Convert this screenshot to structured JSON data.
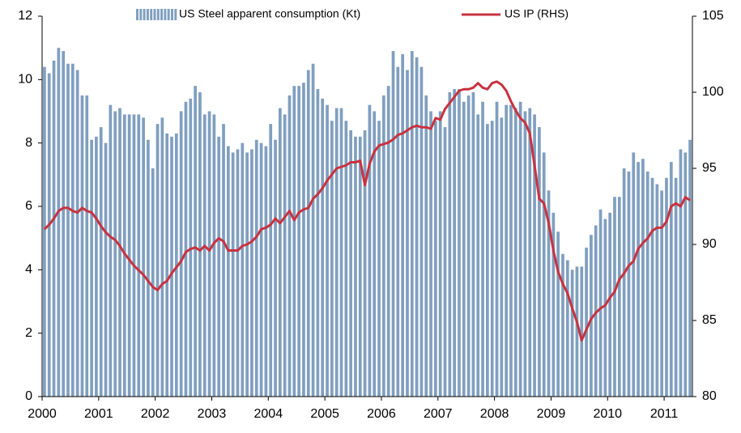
{
  "chart_data": {
    "type": "bar",
    "categories": [
      "2000",
      null,
      null,
      null,
      null,
      null,
      null,
      null,
      null,
      null,
      null,
      null,
      "2001",
      null,
      null,
      null,
      null,
      null,
      null,
      null,
      null,
      null,
      null,
      null,
      "2002",
      null,
      null,
      null,
      null,
      null,
      null,
      null,
      null,
      null,
      null,
      null,
      "2003",
      null,
      null,
      null,
      null,
      null,
      null,
      null,
      null,
      null,
      null,
      null,
      "2004",
      null,
      null,
      null,
      null,
      null,
      null,
      null,
      null,
      null,
      null,
      null,
      "2005",
      null,
      null,
      null,
      null,
      null,
      null,
      null,
      null,
      null,
      null,
      null,
      "2006",
      null,
      null,
      null,
      null,
      null,
      null,
      null,
      null,
      null,
      null,
      null,
      "2007",
      null,
      null,
      null,
      null,
      null,
      null,
      null,
      null,
      null,
      null,
      null,
      "2008",
      null,
      null,
      null,
      null,
      null,
      null,
      null,
      null,
      null,
      null,
      null,
      "2009",
      null,
      null,
      null,
      null,
      null,
      null,
      null,
      null,
      null,
      null,
      null,
      "2010",
      null,
      null,
      null,
      null,
      null,
      null,
      null,
      null,
      null,
      null,
      null,
      "2011",
      null,
      null,
      null,
      null,
      null
    ],
    "series": [
      {
        "name": "US Steel apparent consumption (Kt)",
        "color": "#809fc0",
        "type": "bar",
        "values": [
          10.4,
          10.2,
          10.6,
          11.0,
          10.9,
          10.5,
          10.5,
          10.3,
          9.5,
          9.5,
          8.1,
          8.2,
          8.5,
          8.0,
          9.2,
          9.0,
          9.1,
          8.9,
          8.9,
          8.9,
          8.9,
          8.8,
          8.1,
          7.2,
          8.6,
          8.8,
          8.3,
          8.2,
          8.3,
          9.0,
          9.3,
          9.4,
          9.8,
          9.6,
          8.9,
          9.0,
          8.9,
          8.2,
          8.6,
          7.9,
          7.7,
          7.8,
          8.0,
          7.7,
          7.8,
          8.1,
          8.0,
          7.9,
          8.6,
          8.1,
          9.1,
          8.9,
          9.5,
          9.8,
          9.8,
          9.9,
          10.3,
          10.5,
          9.7,
          9.4,
          9.2,
          8.7,
          9.1,
          9.1,
          8.7,
          8.4,
          8.2,
          8.2,
          8.4,
          9.2,
          9.0,
          8.7,
          9.5,
          9.8,
          10.9,
          10.4,
          10.8,
          10.3,
          10.9,
          10.7,
          10.4,
          9.5,
          9.0,
          8.7,
          9.0,
          8.5,
          9.6,
          9.7,
          9.7,
          9.3,
          9.5,
          9.6,
          8.9,
          9.3,
          8.6,
          8.7,
          9.3,
          8.8,
          9.2,
          9.2,
          9.1,
          9.3,
          9.0,
          9.1,
          8.9,
          8.5,
          7.7,
          6.5,
          5.8,
          5.2,
          4.5,
          4.3,
          4.0,
          4.1,
          4.1,
          4.7,
          5.1,
          5.4,
          5.9,
          5.6,
          5.8,
          6.3,
          6.3,
          7.2,
          7.1,
          7.7,
          7.4,
          7.5,
          7.1,
          6.9,
          6.7,
          6.5,
          6.9,
          7.4,
          6.9,
          7.8,
          7.7,
          8.1
        ]
      },
      {
        "name": "US IP (RHS)",
        "color": "#c8323f",
        "type": "line",
        "axis": "y2",
        "values": [
          91.0,
          91.3,
          91.7,
          92.2,
          92.4,
          92.4,
          92.2,
          92.1,
          92.4,
          92.2,
          92.1,
          91.7,
          91.2,
          90.8,
          90.5,
          90.3,
          89.9,
          89.4,
          89.0,
          88.6,
          88.3,
          88.0,
          87.6,
          87.2,
          87.0,
          87.4,
          87.6,
          88.1,
          88.5,
          88.9,
          89.5,
          89.7,
          89.8,
          89.6,
          89.9,
          89.6,
          90.1,
          90.4,
          90.2,
          89.6,
          89.6,
          89.6,
          89.9,
          90.0,
          90.2,
          90.5,
          91.0,
          91.1,
          91.3,
          91.7,
          91.4,
          91.8,
          92.2,
          91.6,
          92.1,
          92.3,
          92.4,
          93.0,
          93.3,
          93.7,
          94.2,
          94.6,
          95.0,
          95.1,
          95.2,
          95.4,
          95.4,
          95.5,
          93.9,
          95.3,
          96.1,
          96.5,
          96.6,
          96.7,
          96.9,
          97.2,
          97.3,
          97.5,
          97.7,
          97.8,
          97.7,
          97.7,
          97.6,
          98.3,
          98.2,
          98.9,
          99.3,
          99.7,
          100.1,
          100.2,
          100.2,
          100.3,
          100.6,
          100.3,
          100.2,
          100.6,
          100.7,
          100.5,
          100.1,
          99.4,
          98.8,
          98.3,
          98.0,
          97.3,
          95.2,
          93.0,
          92.7,
          91.4,
          89.6,
          88.2,
          87.4,
          86.8,
          85.8,
          84.9,
          83.7,
          84.4,
          85.1,
          85.5,
          85.8,
          86.0,
          86.5,
          86.9,
          87.7,
          88.1,
          88.6,
          88.9,
          89.7,
          90.1,
          90.4,
          90.9,
          91.1,
          91.1,
          91.5,
          92.5,
          92.7,
          92.5,
          93.1,
          92.9
        ]
      }
    ],
    "ylim": [
      0,
      12
    ],
    "yticks": [
      0,
      2,
      4,
      6,
      8,
      10,
      12
    ],
    "y2lim": [
      80,
      105
    ],
    "y2ticks": [
      80,
      85,
      90,
      95,
      100,
      105
    ],
    "legend": "top",
    "grid": false
  }
}
